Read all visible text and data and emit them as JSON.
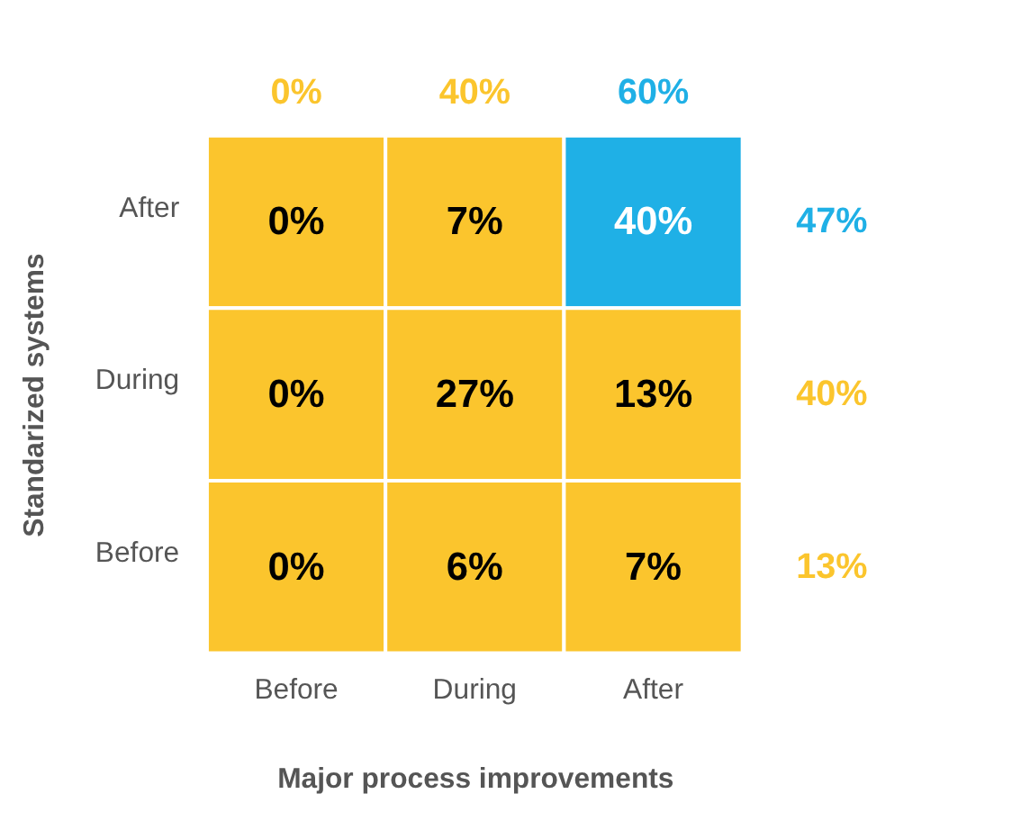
{
  "chart_data": {
    "type": "heatmap",
    "xlabel": "Major process improvements",
    "ylabel": "Standarized systems",
    "categories": [
      "Before",
      "During",
      "After"
    ],
    "y_categories": [
      "After",
      "During",
      "Before"
    ],
    "y2_categories": [
      "47%",
      "40%",
      "13%"
    ],
    "cells": [
      [
        0,
        7,
        40
      ],
      [
        0,
        27,
        13
      ],
      [
        0,
        6,
        7
      ]
    ],
    "cell_labels": [
      [
        "0%",
        "7%",
        "40%"
      ],
      [
        "0%",
        "27%",
        "13%"
      ],
      [
        "0%",
        "6%",
        "7%"
      ]
    ],
    "colors": [
      "#fbc52d",
      "#1fb0e6"
    ],
    "annotations": [
      "0%",
      "40%",
      "60%"
    ]
  }
}
